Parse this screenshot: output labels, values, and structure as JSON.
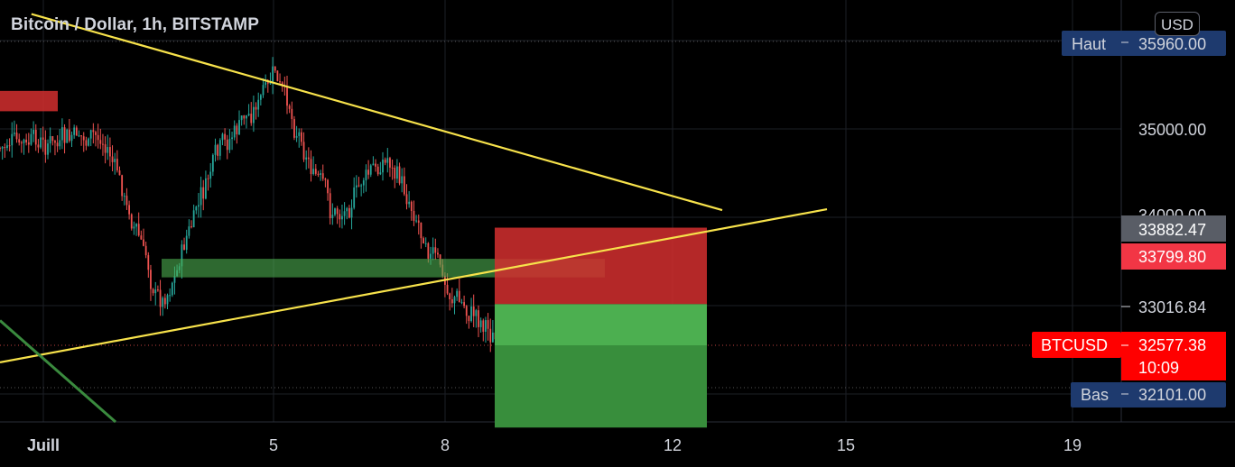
{
  "header": {
    "title": "Bitcoin / Dollar, 1h, BITSTAMP",
    "currency_button": "USD"
  },
  "colors": {
    "background": "#000000",
    "grid": "#1c1f26",
    "candle_up": "#26a69a",
    "candle_down": "#ef5350",
    "trendline": "#f7e24b",
    "green_line": "#3a8a3e",
    "red_zone": "#d32f2f",
    "profit_zone_top": "#4caf50",
    "profit_zone_bottom": "#388e3c",
    "box_green": "#4caf50",
    "box_red": "#d32f2f",
    "high_low_label": "#1e3a6e",
    "current_price_label": "#f23645",
    "gray_label": "#595d66"
  },
  "chart_data": {
    "type": "candlestick",
    "symbol": "BTCUSD",
    "timeframe": "1h",
    "exchange": "BITSTAMP",
    "x_tick_labels": [
      "Juill",
      "5",
      "8",
      "12",
      "15",
      "19"
    ],
    "y_tick_labels": [
      "35000.00",
      "34000.00"
    ],
    "ylim": [
      31600,
      36240
    ],
    "price_labels": {
      "high": {
        "label": "Haut",
        "value": "35960.00"
      },
      "low": {
        "label": "Bas",
        "value": "32101.00"
      },
      "current": {
        "label": "BTCUSD",
        "value": "32577.38",
        "countdown": "10:09"
      },
      "level_1": {
        "value": "33882.47"
      },
      "level_2": {
        "value": "33799.80"
      },
      "level_3": {
        "value": "33016.84"
      }
    },
    "approximate_close_path": [
      {
        "date": "Jul 2",
        "close": 34900
      },
      {
        "date": "Jul 3",
        "close": 33000
      },
      {
        "date": "Jul 4",
        "close": 34700
      },
      {
        "date": "Jul 5",
        "close": 35600
      },
      {
        "date": "Jul 6",
        "close": 34000
      },
      {
        "date": "Jul 7",
        "close": 34700
      },
      {
        "date": "Jul 8",
        "close": 33200
      },
      {
        "date": "Jul 9",
        "close": 32577
      }
    ],
    "drawings": {
      "descending_trendline": {
        "from": {
          "date": "Jul 1",
          "price": 36300
        },
        "to": {
          "date": "Jul 12",
          "price": 34050
        }
      },
      "ascending_trendline": {
        "from": {
          "date": "Jun 30",
          "price": 32450
        },
        "to": {
          "date": "Jul 15",
          "price": 34050
        }
      },
      "green_diagonal": {
        "from": {
          "date": "Jun 30",
          "price": 32780
        },
        "to": {
          "date": "Jul 2",
          "price": 31630
        }
      },
      "red_zone_top_left": {
        "price_top": 35430,
        "price_bottom": 35200
      },
      "green_zone": {
        "price_top": 33530,
        "price_bottom": 33320
      },
      "short_position": {
        "stop_top": 33882.47,
        "entry": 33016.84,
        "target": 31620
      }
    }
  }
}
